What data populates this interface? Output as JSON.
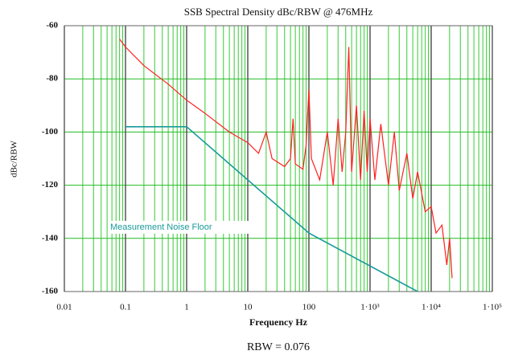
{
  "chart_data": {
    "type": "line",
    "title": "SSB Spectral Density dBc/RBW @ 476MHz",
    "x_label": "Frequency Hz",
    "y_label": "dBc/RBW",
    "footer": "RBW = 0.076",
    "annotations": [
      "Measurement Noise Floor"
    ],
    "x_scale": "log",
    "grid": true,
    "minor_grid": true,
    "xlim": [
      0.01,
      100000
    ],
    "xticks": [
      0.01,
      0.1,
      1,
      10,
      100,
      {
        "value": 1000,
        "label": "1·10³"
      },
      {
        "value": 10000,
        "label": "1·10⁴"
      },
      {
        "value": 100000,
        "label": "1·10⁵"
      }
    ],
    "ylim": [
      -160,
      -60
    ],
    "yticks": [
      -160,
      -140,
      -120,
      -100,
      -80,
      -60
    ],
    "series": [
      {
        "name": "SSB",
        "color": "#ff2020",
        "x": [
          0.08,
          0.1,
          0.2,
          0.5,
          1,
          2,
          5,
          10,
          15,
          20,
          25,
          40,
          50,
          55,
          60,
          80,
          90,
          100,
          110,
          150,
          200,
          250,
          300,
          350,
          400,
          450,
          500,
          600,
          700,
          800,
          900,
          1000,
          1200,
          1500,
          2000,
          2500,
          3000,
          4000,
          5000,
          6000,
          8000,
          10000,
          12000,
          15000,
          18000,
          20000,
          22000
        ],
        "values": [
          -65,
          -68,
          -75,
          -82,
          -88,
          -93,
          -100,
          -104,
          -108,
          -100,
          -110,
          -113,
          -110,
          -95,
          -112,
          -114,
          -105,
          -84,
          -110,
          -118,
          -100,
          -120,
          -95,
          -115,
          -100,
          -68,
          -115,
          -90,
          -118,
          -92,
          -115,
          -95,
          -118,
          -97,
          -120,
          -100,
          -122,
          -108,
          -125,
          -115,
          -130,
          -128,
          -138,
          -135,
          -150,
          -140,
          -155
        ]
      },
      {
        "name": "Measurement Noise Floor",
        "color": "#1a9a9a",
        "x": [
          0.1,
          1,
          100,
          6000
        ],
        "values": [
          -98,
          -98,
          -138,
          -160
        ]
      }
    ]
  }
}
